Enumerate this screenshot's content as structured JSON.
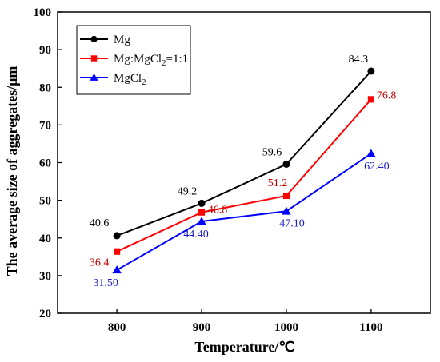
{
  "chart_data": {
    "type": "line",
    "title": "",
    "xlabel": "Temperature/℃",
    "ylabel": "The average size of aggregates/μm",
    "x": [
      800,
      900,
      1000,
      1100
    ],
    "x_ticks": [
      "800",
      "900",
      "1000",
      "1100"
    ],
    "xlim": [
      730,
      1170
    ],
    "ylim": [
      20,
      100
    ],
    "y_ticks": [
      "20",
      "30",
      "40",
      "50",
      "60",
      "70",
      "80",
      "90",
      "100"
    ],
    "grid": false,
    "legend_position": "top-left",
    "series": [
      {
        "name": "Mg",
        "legend_main": "Mg",
        "legend_sub": "",
        "legend_tail": "",
        "color": "#000000",
        "marker": "circle",
        "values": [
          40.6,
          49.2,
          59.6,
          84.3
        ],
        "labels": [
          "40.6",
          "49.2",
          "59.6",
          "84.3"
        ]
      },
      {
        "name": "Mg:MgCl2=1:1",
        "legend_main": "Mg:MgCl",
        "legend_sub": "2",
        "legend_tail": "=1:1",
        "color": "#ff0000",
        "marker": "square",
        "values": [
          36.4,
          46.8,
          51.2,
          76.8
        ],
        "labels": [
          "36.4",
          "46.8",
          "51.2",
          "76.8"
        ]
      },
      {
        "name": "MgCl2",
        "legend_main": "MgCl",
        "legend_sub": "2",
        "legend_tail": "",
        "color": "#0000ff",
        "marker": "triangle",
        "values": [
          31.5,
          44.4,
          47.1,
          62.4
        ],
        "labels": [
          "31.50",
          "44.40",
          "47.10",
          "62.40"
        ]
      }
    ]
  }
}
